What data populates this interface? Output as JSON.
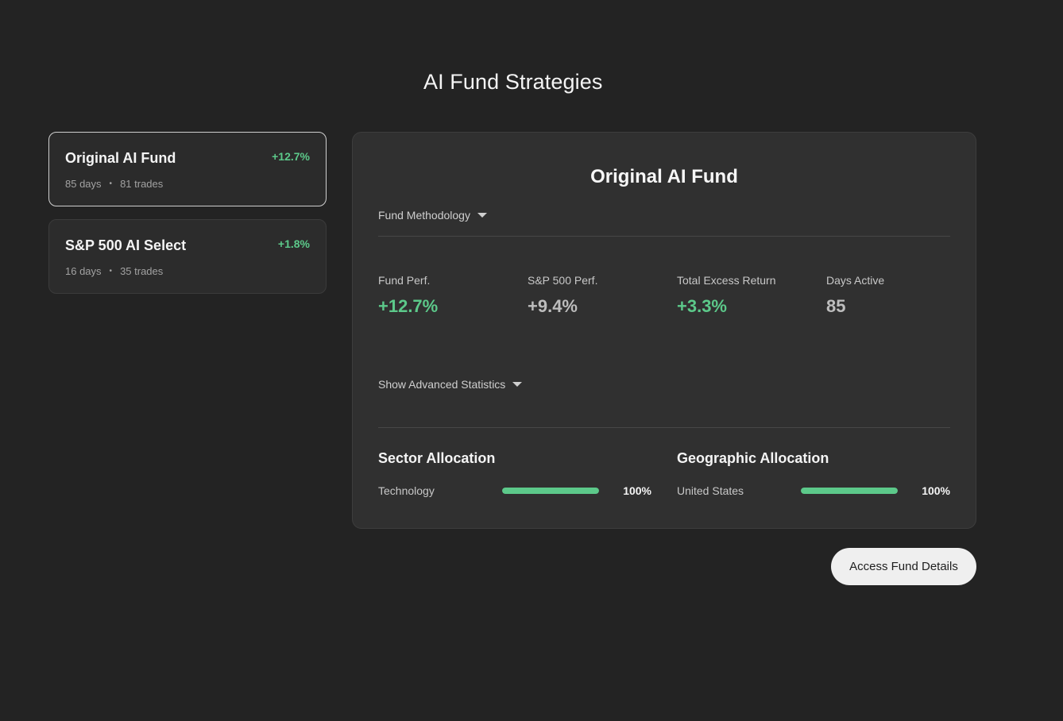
{
  "page": {
    "title": "AI Fund Strategies"
  },
  "funds": [
    {
      "name": "Original AI Fund",
      "return": "+12.7%",
      "days": "85 days",
      "trades": "81 trades",
      "selected": true
    },
    {
      "name": "S&P 500 AI Select",
      "return": "+1.8%",
      "days": "16 days",
      "trades": "35 trades",
      "selected": false
    }
  ],
  "detail": {
    "title": "Original AI Fund",
    "methodology_toggle": "Fund Methodology",
    "advanced_toggle": "Show Advanced Statistics",
    "stats": [
      {
        "label": "Fund Perf.",
        "value": "+12.7%"
      },
      {
        "label": "S&P 500 Perf.",
        "value": "+9.4%"
      },
      {
        "label": "Total Excess Return",
        "value": "+3.3%"
      },
      {
        "label": "Days Active",
        "value": "85"
      }
    ],
    "sector": {
      "heading": "Sector Allocation",
      "items": [
        {
          "label": "Technology",
          "pct": "100%",
          "fraction": 1.0
        }
      ]
    },
    "geo": {
      "heading": "Geographic Allocation",
      "items": [
        {
          "label": "United States",
          "pct": "100%",
          "fraction": 1.0
        }
      ]
    }
  },
  "actions": {
    "access_label": "Access Fund Details"
  },
  "colors": {
    "positive": "#5cc98a",
    "neutral": "#bdbdbd",
    "background": "#232323",
    "panel": "#303030"
  },
  "icons": {
    "dropdown": "caret-down-icon",
    "separator": "bullet-dot"
  }
}
